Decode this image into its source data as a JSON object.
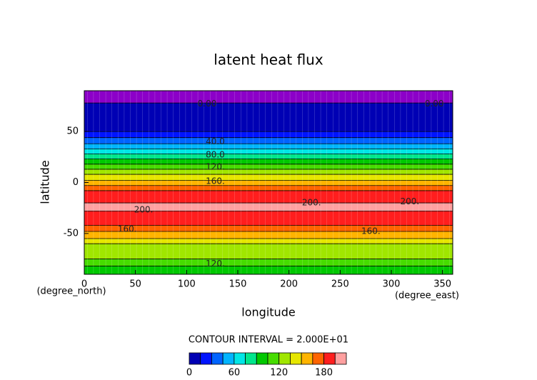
{
  "chart_data": {
    "type": "contour",
    "title": "latent heat flux",
    "xlabel": "longitude",
    "ylabel": "latitude",
    "xunit": "(degree_east)",
    "yunit": "(degree_north)",
    "xlim": [
      0,
      360
    ],
    "ylim": [
      -90,
      90
    ],
    "xticks": [
      0,
      50,
      100,
      150,
      200,
      250,
      300,
      350
    ],
    "yticks": [
      -50,
      0,
      50
    ],
    "bands": {
      "lat_top": [
        90,
        78,
        50,
        44,
        38,
        33,
        28,
        23,
        18,
        13,
        8,
        2,
        -3,
        -8,
        -20,
        -28,
        -42,
        -48,
        -55,
        -60,
        -75,
        -82
      ],
      "lat_bottom": [
        78,
        50,
        44,
        38,
        33,
        28,
        23,
        18,
        13,
        8,
        2,
        -3,
        -8,
        -20,
        -28,
        -42,
        -48,
        -55,
        -60,
        -75,
        -82,
        -90
      ],
      "values": [
        -5,
        8,
        22,
        38,
        52,
        68,
        82,
        98,
        112,
        127,
        145,
        160,
        172,
        188,
        200,
        188,
        172,
        158,
        145,
        130,
        112,
        100
      ]
    },
    "below_color": "#8c00c8",
    "contour_labels": [
      {
        "label": "0.00",
        "lon": 120,
        "lat": 77
      },
      {
        "label": "0.00",
        "lon": 342,
        "lat": 77
      },
      {
        "label": "40.0",
        "lon": 128,
        "lat": 40
      },
      {
        "label": "80.0",
        "lon": 128,
        "lat": 27
      },
      {
        "label": "120.",
        "lon": 128,
        "lat": 15
      },
      {
        "label": "160.",
        "lon": 128,
        "lat": 1
      },
      {
        "label": "200.",
        "lon": 58,
        "lat": -27
      },
      {
        "label": "200.",
        "lon": 222,
        "lat": -20
      },
      {
        "label": "200.",
        "lon": 318,
        "lat": -19
      },
      {
        "label": "160.",
        "lon": 42,
        "lat": -46
      },
      {
        "label": "160.",
        "lon": 280,
        "lat": -48
      },
      {
        "label": "120.",
        "lon": 128,
        "lat": -80
      }
    ],
    "contour_interval": "CONTOUR INTERVAL = 2.000E+01",
    "colorbar": {
      "levels": [
        0,
        15,
        30,
        45,
        60,
        75,
        90,
        105,
        120,
        135,
        150,
        165,
        180,
        195,
        210
      ],
      "colors": [
        "#0000b4",
        "#0014ff",
        "#0064ff",
        "#00b4ff",
        "#00e6e6",
        "#00e68c",
        "#00c800",
        "#46dc00",
        "#a0e600",
        "#e6e600",
        "#ffb400",
        "#ff6400",
        "#ff1e1e",
        "#ffa0a0"
      ],
      "ticks": [
        0,
        60,
        120,
        180
      ]
    }
  }
}
